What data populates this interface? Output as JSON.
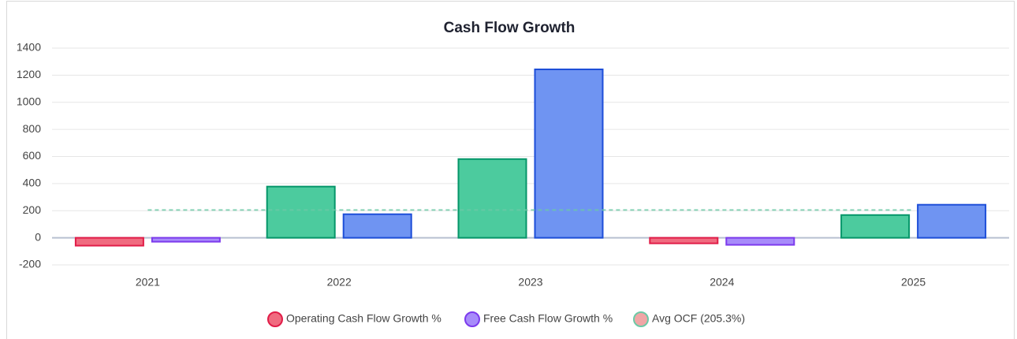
{
  "chart_data": {
    "type": "bar",
    "title": "Cash Flow Growth",
    "categories": [
      "2021",
      "2022",
      "2023",
      "2024",
      "2025"
    ],
    "series": [
      {
        "name": "Operating Cash Flow Growth %",
        "color": "#f06b80",
        "border": "#e11d48",
        "positive_color": "#4ccb9e",
        "positive_border": "#059669",
        "values": [
          -58,
          378,
          581,
          -41,
          168
        ]
      },
      {
        "name": "Free Cash Flow Growth %",
        "color": "#a78bfa",
        "border": "#7c3aed",
        "positive_color": "#6f94f2",
        "positive_border": "#1d4ed8",
        "values": [
          -29,
          174,
          1243,
          -52,
          244
        ]
      }
    ],
    "reference_line": {
      "name": "Avg OCF (205.3%)",
      "value": 205.3,
      "color": "#6cc9a6",
      "fill": "#f0a6a6"
    },
    "ylim": [
      -200,
      1400
    ],
    "yticks": [
      -200,
      0,
      200,
      400,
      600,
      800,
      1000,
      1200,
      1400
    ],
    "grid": true
  }
}
